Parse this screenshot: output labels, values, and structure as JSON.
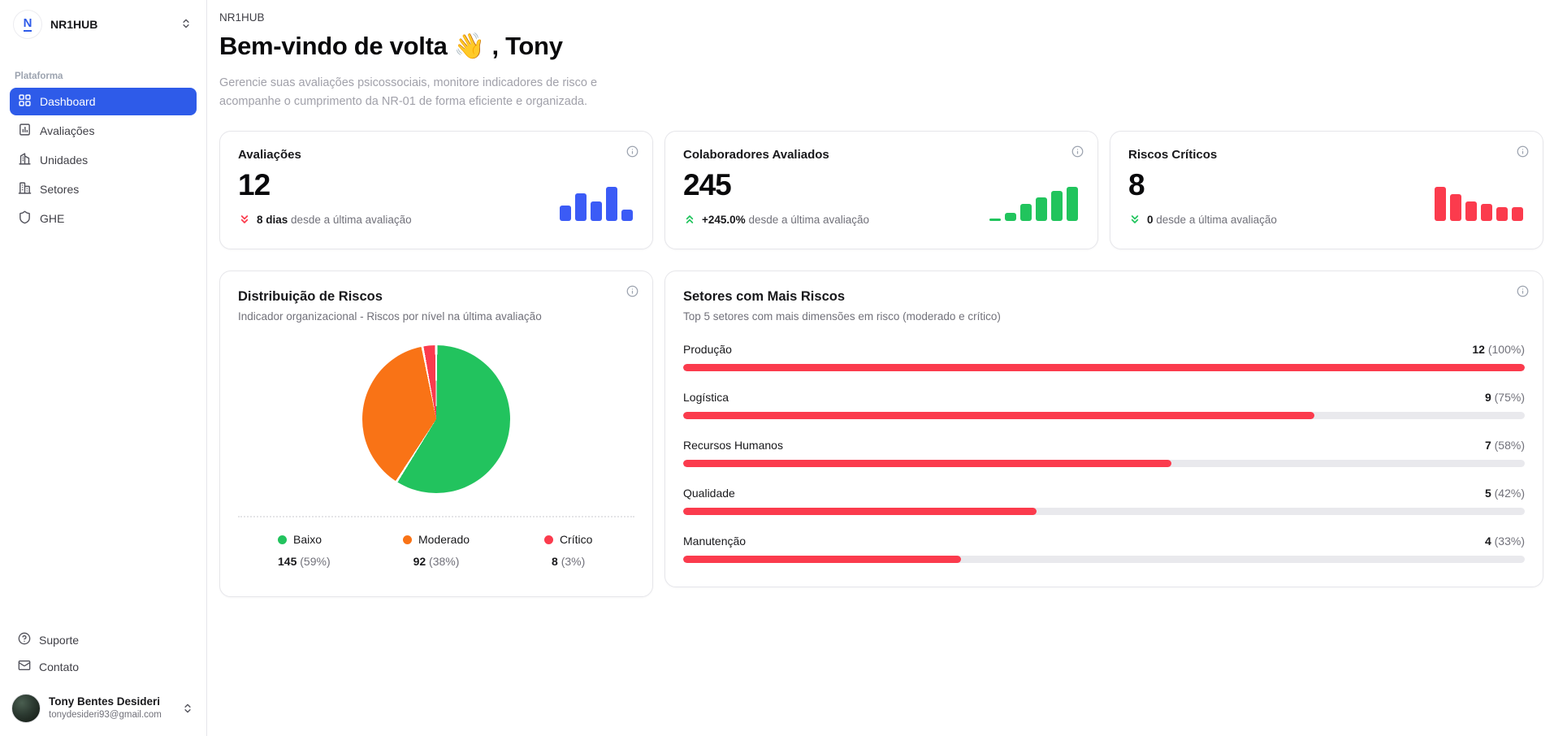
{
  "colors": {
    "primary_blue": "#2e5be9",
    "spark_blue": "#3b5bf6",
    "green": "#21c45d",
    "orange": "#f97316",
    "red": "#fb3b4d",
    "track_gray": "#e9e9ed"
  },
  "sidebar": {
    "app_name": "NR1HUB",
    "section_label": "Plataforma",
    "items": [
      {
        "label": "Dashboard",
        "active": true
      },
      {
        "label": "Avaliações",
        "active": false
      },
      {
        "label": "Unidades",
        "active": false
      },
      {
        "label": "Setores",
        "active": false
      },
      {
        "label": "GHE",
        "active": false
      }
    ],
    "footer_items": [
      {
        "label": "Suporte"
      },
      {
        "label": "Contato"
      }
    ],
    "user": {
      "name": "Tony Bentes Desideri",
      "email": "tonydesideri93@gmail.com"
    }
  },
  "header": {
    "eyebrow": "NR1HUB",
    "title": "Bem-vindo de volta 👋 , Tony",
    "subtitle": "Gerencie suas avaliações psicossociais, monitore indicadores de risco e acompanhe o cumprimento da NR-01 de forma eficiente e organizada."
  },
  "stat_cards": [
    {
      "title": "Avaliações",
      "value": "12",
      "trend_value": "8 dias",
      "trend_rest": "desde a última avaliação",
      "trend_direction": "down",
      "trend_color": "red",
      "spark": {
        "color": "#3b5bf6",
        "bars": [
          45,
          80,
          56,
          100,
          34
        ]
      }
    },
    {
      "title": "Colaboradores Avaliados",
      "value": "245",
      "trend_value": "+245.0%",
      "trend_rest": "desde a última avaliação",
      "trend_direction": "up",
      "trend_color": "green",
      "spark": {
        "color": "#21c45d",
        "bars": [
          8,
          25,
          50,
          68,
          88,
          100
        ]
      }
    },
    {
      "title": "Riscos Críticos",
      "value": "8",
      "trend_value": "0",
      "trend_rest": "desde a última avaliação",
      "trend_direction": "down",
      "trend_color": "green",
      "spark": {
        "color": "#fb3b4d",
        "bars": [
          100,
          79,
          57,
          50,
          41,
          41
        ]
      }
    }
  ],
  "distribution": {
    "title": "Distribuição de Riscos",
    "subtitle": "Indicador organizacional - Riscos por nível na última avaliação",
    "slices": [
      {
        "label": "Baixo",
        "count": 145,
        "percent": 59,
        "count_label": "145",
        "percent_label": "(59%)",
        "color": "#22c35e"
      },
      {
        "label": "Moderado",
        "count": 92,
        "percent": 38,
        "count_label": "92",
        "percent_label": "(38%)",
        "color": "#f97316"
      },
      {
        "label": "Crítico",
        "count": 8,
        "percent": 3,
        "count_label": "8",
        "percent_label": "(3%)",
        "color": "#fb3b4d"
      }
    ]
  },
  "sectors": {
    "title": "Setores com Mais Riscos",
    "subtitle": "Top 5 setores com mais dimensões em risco (moderado e crítico)",
    "rows": [
      {
        "label": "Produção",
        "count": 12,
        "percent": 100,
        "count_label": "12",
        "percent_label": "(100%)"
      },
      {
        "label": "Logística",
        "count": 9,
        "percent": 75,
        "count_label": "9",
        "percent_label": "(75%)"
      },
      {
        "label": "Recursos Humanos",
        "count": 7,
        "percent": 58,
        "count_label": "7",
        "percent_label": "(58%)"
      },
      {
        "label": "Qualidade",
        "count": 5,
        "percent": 42,
        "count_label": "5",
        "percent_label": "(42%)"
      },
      {
        "label": "Manutenção",
        "count": 4,
        "percent": 33,
        "count_label": "4",
        "percent_label": "(33%)"
      }
    ]
  },
  "chart_data": [
    {
      "type": "pie",
      "title": "Distribuição de Riscos",
      "labels": [
        "Baixo",
        "Moderado",
        "Crítico"
      ],
      "values": [
        145,
        92,
        8
      ],
      "percents": [
        59,
        38,
        3
      ],
      "colors": [
        "#22c35e",
        "#f97316",
        "#fb3b4d"
      ],
      "legend_position": "bottom"
    },
    {
      "type": "bar",
      "title": "Setores com Mais Riscos",
      "orientation": "horizontal",
      "categories": [
        "Produção",
        "Logística",
        "Recursos Humanos",
        "Qualidade",
        "Manutenção"
      ],
      "values": [
        12,
        9,
        7,
        5,
        4
      ],
      "percents": [
        100,
        75,
        58,
        42,
        33
      ]
    },
    {
      "type": "bar",
      "title": "Avaliações (sparkline)",
      "values": [
        45,
        80,
        56,
        100,
        34
      ]
    },
    {
      "type": "bar",
      "title": "Colaboradores Avaliados (sparkline)",
      "values": [
        8,
        25,
        50,
        68,
        88,
        100
      ]
    },
    {
      "type": "bar",
      "title": "Riscos Críticos (sparkline)",
      "values": [
        100,
        79,
        57,
        50,
        41,
        41
      ]
    }
  ]
}
